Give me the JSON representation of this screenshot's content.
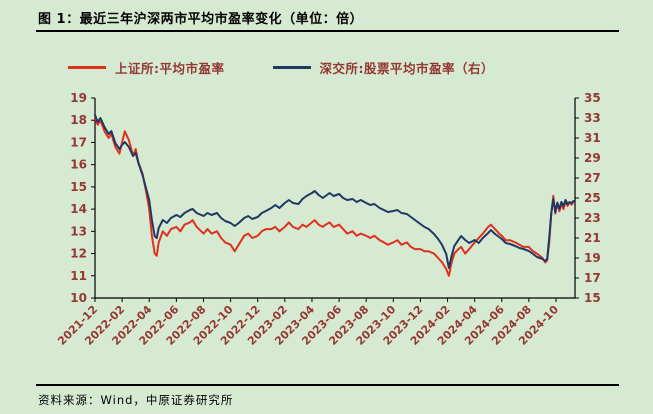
{
  "title": "图 1：最近三年沪深两市平均市盈率变化（单位：倍）",
  "source": "资料来源：Wind，中原证券研究所",
  "colors": {
    "background": "#d6ead2",
    "axis_label": "#953735",
    "axis_line": "#000000",
    "series_sse": "#e0301e",
    "series_szse": "#1f3864"
  },
  "legend": [
    {
      "label": "上证所:平均市盈率",
      "color": "#e0301e"
    },
    {
      "label": "深交所:股票平均市盈率（右）",
      "color": "#1f3864"
    }
  ],
  "chart_data": {
    "type": "line",
    "title": "最近三年沪深两市平均市盈率变化（单位：倍）",
    "x_unit": "months since 2021-12",
    "x_domain": [
      0,
      35.4
    ],
    "x_tick_positions": [
      0,
      2,
      4,
      6,
      8,
      10,
      12,
      14,
      16,
      18,
      20,
      22,
      24,
      26,
      28,
      30,
      32,
      34
    ],
    "x_tick_labels": [
      "2021-12",
      "2022-02",
      "2022-04",
      "2022-06",
      "2022-08",
      "2022-10",
      "2022-12",
      "2023-02",
      "2023-04",
      "2023-06",
      "2023-08",
      "2023-10",
      "2023-12",
      "2024-02",
      "2024-04",
      "2024-06",
      "2024-08",
      "2024-10"
    ],
    "left_axis": {
      "min": 10,
      "max": 19,
      "step": 1
    },
    "right_axis": {
      "min": 15,
      "max": 35,
      "step": 2
    },
    "grid": false,
    "legend_position": "top",
    "series": [
      {
        "name": "上证所:平均市盈率",
        "axis": "left",
        "color": "#e0301e",
        "points": [
          [
            0,
            18.1
          ],
          [
            0.2,
            17.8
          ],
          [
            0.4,
            18.0
          ],
          [
            0.7,
            17.5
          ],
          [
            1.0,
            17.2
          ],
          [
            1.2,
            17.4
          ],
          [
            1.5,
            16.8
          ],
          [
            1.8,
            16.5
          ],
          [
            2.0,
            17.0
          ],
          [
            2.2,
            17.5
          ],
          [
            2.5,
            17.1
          ],
          [
            2.8,
            16.4
          ],
          [
            3.0,
            16.7
          ],
          [
            3.2,
            16.1
          ],
          [
            3.5,
            15.6
          ],
          [
            3.8,
            14.7
          ],
          [
            4.0,
            14.0
          ],
          [
            4.2,
            12.8
          ],
          [
            4.4,
            12.0
          ],
          [
            4.55,
            11.9
          ],
          [
            4.7,
            12.5
          ],
          [
            5.0,
            13.0
          ],
          [
            5.3,
            12.8
          ],
          [
            5.6,
            13.1
          ],
          [
            6.0,
            13.2
          ],
          [
            6.3,
            13.0
          ],
          [
            6.6,
            13.3
          ],
          [
            7.0,
            13.4
          ],
          [
            7.2,
            13.5
          ],
          [
            7.5,
            13.2
          ],
          [
            8.0,
            12.9
          ],
          [
            8.3,
            13.1
          ],
          [
            8.6,
            12.9
          ],
          [
            9.0,
            13.0
          ],
          [
            9.3,
            12.7
          ],
          [
            9.6,
            12.5
          ],
          [
            10.0,
            12.4
          ],
          [
            10.3,
            12.1
          ],
          [
            10.6,
            12.4
          ],
          [
            11.0,
            12.8
          ],
          [
            11.3,
            12.9
          ],
          [
            11.6,
            12.7
          ],
          [
            12.0,
            12.8
          ],
          [
            12.3,
            13.0
          ],
          [
            12.6,
            13.1
          ],
          [
            13.0,
            13.1
          ],
          [
            13.3,
            13.2
          ],
          [
            13.6,
            13.0
          ],
          [
            14.0,
            13.2
          ],
          [
            14.3,
            13.4
          ],
          [
            14.6,
            13.2
          ],
          [
            15.0,
            13.1
          ],
          [
            15.3,
            13.3
          ],
          [
            15.6,
            13.2
          ],
          [
            16.0,
            13.4
          ],
          [
            16.2,
            13.5
          ],
          [
            16.5,
            13.3
          ],
          [
            16.8,
            13.2
          ],
          [
            17.0,
            13.3
          ],
          [
            17.3,
            13.4
          ],
          [
            17.6,
            13.2
          ],
          [
            18.0,
            13.3
          ],
          [
            18.3,
            13.1
          ],
          [
            18.6,
            12.9
          ],
          [
            19.0,
            13.0
          ],
          [
            19.3,
            12.8
          ],
          [
            19.6,
            12.9
          ],
          [
            20.0,
            12.8
          ],
          [
            20.3,
            12.7
          ],
          [
            20.6,
            12.8
          ],
          [
            21.0,
            12.6
          ],
          [
            21.3,
            12.5
          ],
          [
            21.6,
            12.4
          ],
          [
            22.0,
            12.5
          ],
          [
            22.3,
            12.6
          ],
          [
            22.6,
            12.4
          ],
          [
            23.0,
            12.5
          ],
          [
            23.3,
            12.3
          ],
          [
            23.6,
            12.2
          ],
          [
            24.0,
            12.2
          ],
          [
            24.3,
            12.1
          ],
          [
            24.6,
            12.1
          ],
          [
            25.0,
            12.0
          ],
          [
            25.3,
            11.8
          ],
          [
            25.6,
            11.6
          ],
          [
            25.9,
            11.3
          ],
          [
            26.1,
            11.0
          ],
          [
            26.3,
            11.6
          ],
          [
            26.5,
            12.0
          ],
          [
            26.8,
            12.2
          ],
          [
            27.0,
            12.3
          ],
          [
            27.3,
            12.0
          ],
          [
            27.6,
            12.2
          ],
          [
            28.0,
            12.5
          ],
          [
            28.3,
            12.7
          ],
          [
            28.6,
            12.9
          ],
          [
            29.0,
            13.2
          ],
          [
            29.2,
            13.3
          ],
          [
            29.5,
            13.1
          ],
          [
            29.8,
            12.9
          ],
          [
            30.0,
            12.8
          ],
          [
            30.3,
            12.6
          ],
          [
            30.6,
            12.6
          ],
          [
            31.0,
            12.5
          ],
          [
            31.3,
            12.4
          ],
          [
            31.6,
            12.3
          ],
          [
            32.0,
            12.3
          ],
          [
            32.3,
            12.1
          ],
          [
            32.6,
            12.0
          ],
          [
            33.0,
            11.8
          ],
          [
            33.2,
            11.6
          ],
          [
            33.35,
            11.7
          ],
          [
            33.5,
            12.5
          ],
          [
            33.65,
            13.8
          ],
          [
            33.8,
            14.6
          ],
          [
            33.95,
            13.8
          ],
          [
            34.1,
            14.3
          ],
          [
            34.25,
            13.9
          ],
          [
            34.4,
            14.25
          ],
          [
            34.55,
            14.0
          ],
          [
            34.7,
            14.35
          ],
          [
            34.85,
            14.15
          ],
          [
            35.0,
            14.3
          ],
          [
            35.15,
            14.2
          ],
          [
            35.3,
            14.35
          ]
        ]
      },
      {
        "name": "深交所:股票平均市盈率（右）",
        "axis": "right",
        "color": "#1f3864",
        "points": [
          [
            0,
            33.3
          ],
          [
            0.2,
            32.6
          ],
          [
            0.4,
            33.0
          ],
          [
            0.7,
            32.1
          ],
          [
            1.0,
            31.4
          ],
          [
            1.2,
            31.7
          ],
          [
            1.5,
            30.5
          ],
          [
            1.8,
            29.9
          ],
          [
            2.0,
            30.3
          ],
          [
            2.2,
            30.6
          ],
          [
            2.5,
            30.1
          ],
          [
            2.8,
            29.2
          ],
          [
            3.0,
            29.5
          ],
          [
            3.2,
            28.5
          ],
          [
            3.5,
            27.3
          ],
          [
            3.8,
            25.8
          ],
          [
            4.0,
            24.8
          ],
          [
            4.2,
            22.8
          ],
          [
            4.4,
            21.2
          ],
          [
            4.55,
            21.0
          ],
          [
            4.7,
            22.0
          ],
          [
            5.0,
            22.8
          ],
          [
            5.3,
            22.5
          ],
          [
            5.6,
            23.0
          ],
          [
            6.0,
            23.3
          ],
          [
            6.3,
            23.1
          ],
          [
            6.6,
            23.5
          ],
          [
            7.0,
            23.8
          ],
          [
            7.2,
            23.9
          ],
          [
            7.5,
            23.5
          ],
          [
            8.0,
            23.2
          ],
          [
            8.3,
            23.5
          ],
          [
            8.6,
            23.3
          ],
          [
            9.0,
            23.5
          ],
          [
            9.3,
            23.0
          ],
          [
            9.6,
            22.7
          ],
          [
            10.0,
            22.5
          ],
          [
            10.3,
            22.2
          ],
          [
            10.6,
            22.5
          ],
          [
            11.0,
            23.0
          ],
          [
            11.3,
            23.2
          ],
          [
            11.6,
            22.9
          ],
          [
            12.0,
            23.1
          ],
          [
            12.3,
            23.5
          ],
          [
            12.6,
            23.7
          ],
          [
            13.0,
            24.0
          ],
          [
            13.3,
            24.3
          ],
          [
            13.6,
            24.0
          ],
          [
            14.0,
            24.5
          ],
          [
            14.3,
            24.8
          ],
          [
            14.6,
            24.5
          ],
          [
            15.0,
            24.4
          ],
          [
            15.3,
            24.9
          ],
          [
            15.6,
            25.2
          ],
          [
            16.0,
            25.5
          ],
          [
            16.2,
            25.7
          ],
          [
            16.5,
            25.3
          ],
          [
            16.8,
            25.0
          ],
          [
            17.0,
            25.2
          ],
          [
            17.3,
            25.5
          ],
          [
            17.6,
            25.2
          ],
          [
            18.0,
            25.4
          ],
          [
            18.3,
            25.0
          ],
          [
            18.6,
            24.8
          ],
          [
            19.0,
            24.9
          ],
          [
            19.3,
            24.6
          ],
          [
            19.6,
            24.8
          ],
          [
            20.0,
            24.5
          ],
          [
            20.3,
            24.3
          ],
          [
            20.6,
            24.4
          ],
          [
            21.0,
            24.0
          ],
          [
            21.3,
            23.8
          ],
          [
            21.6,
            23.6
          ],
          [
            22.0,
            23.7
          ],
          [
            22.3,
            23.8
          ],
          [
            22.6,
            23.5
          ],
          [
            23.0,
            23.4
          ],
          [
            23.3,
            23.1
          ],
          [
            23.6,
            22.8
          ],
          [
            24.0,
            22.4
          ],
          [
            24.3,
            22.1
          ],
          [
            24.6,
            21.9
          ],
          [
            25.0,
            21.4
          ],
          [
            25.3,
            20.9
          ],
          [
            25.6,
            20.3
          ],
          [
            25.9,
            19.4
          ],
          [
            26.1,
            18.0
          ],
          [
            26.3,
            19.2
          ],
          [
            26.5,
            20.2
          ],
          [
            26.8,
            20.8
          ],
          [
            27.0,
            21.2
          ],
          [
            27.3,
            20.8
          ],
          [
            27.6,
            20.5
          ],
          [
            28.0,
            20.8
          ],
          [
            28.3,
            20.5
          ],
          [
            28.6,
            21.0
          ],
          [
            29.0,
            21.5
          ],
          [
            29.2,
            21.8
          ],
          [
            29.5,
            21.4
          ],
          [
            29.8,
            21.1
          ],
          [
            30.0,
            20.9
          ],
          [
            30.3,
            20.5
          ],
          [
            30.6,
            20.4
          ],
          [
            31.0,
            20.2
          ],
          [
            31.3,
            20.0
          ],
          [
            31.6,
            19.9
          ],
          [
            32.0,
            19.7
          ],
          [
            32.3,
            19.4
          ],
          [
            32.6,
            19.1
          ],
          [
            33.0,
            18.9
          ],
          [
            33.2,
            18.7
          ],
          [
            33.35,
            18.9
          ],
          [
            33.5,
            21.0
          ],
          [
            33.65,
            23.5
          ],
          [
            33.8,
            24.9
          ],
          [
            33.95,
            23.6
          ],
          [
            34.1,
            24.5
          ],
          [
            34.25,
            23.9
          ],
          [
            34.4,
            24.6
          ],
          [
            34.55,
            24.2
          ],
          [
            34.7,
            24.8
          ],
          [
            34.85,
            24.4
          ],
          [
            35.0,
            24.6
          ],
          [
            35.15,
            24.5
          ],
          [
            35.3,
            24.7
          ]
        ]
      }
    ]
  }
}
